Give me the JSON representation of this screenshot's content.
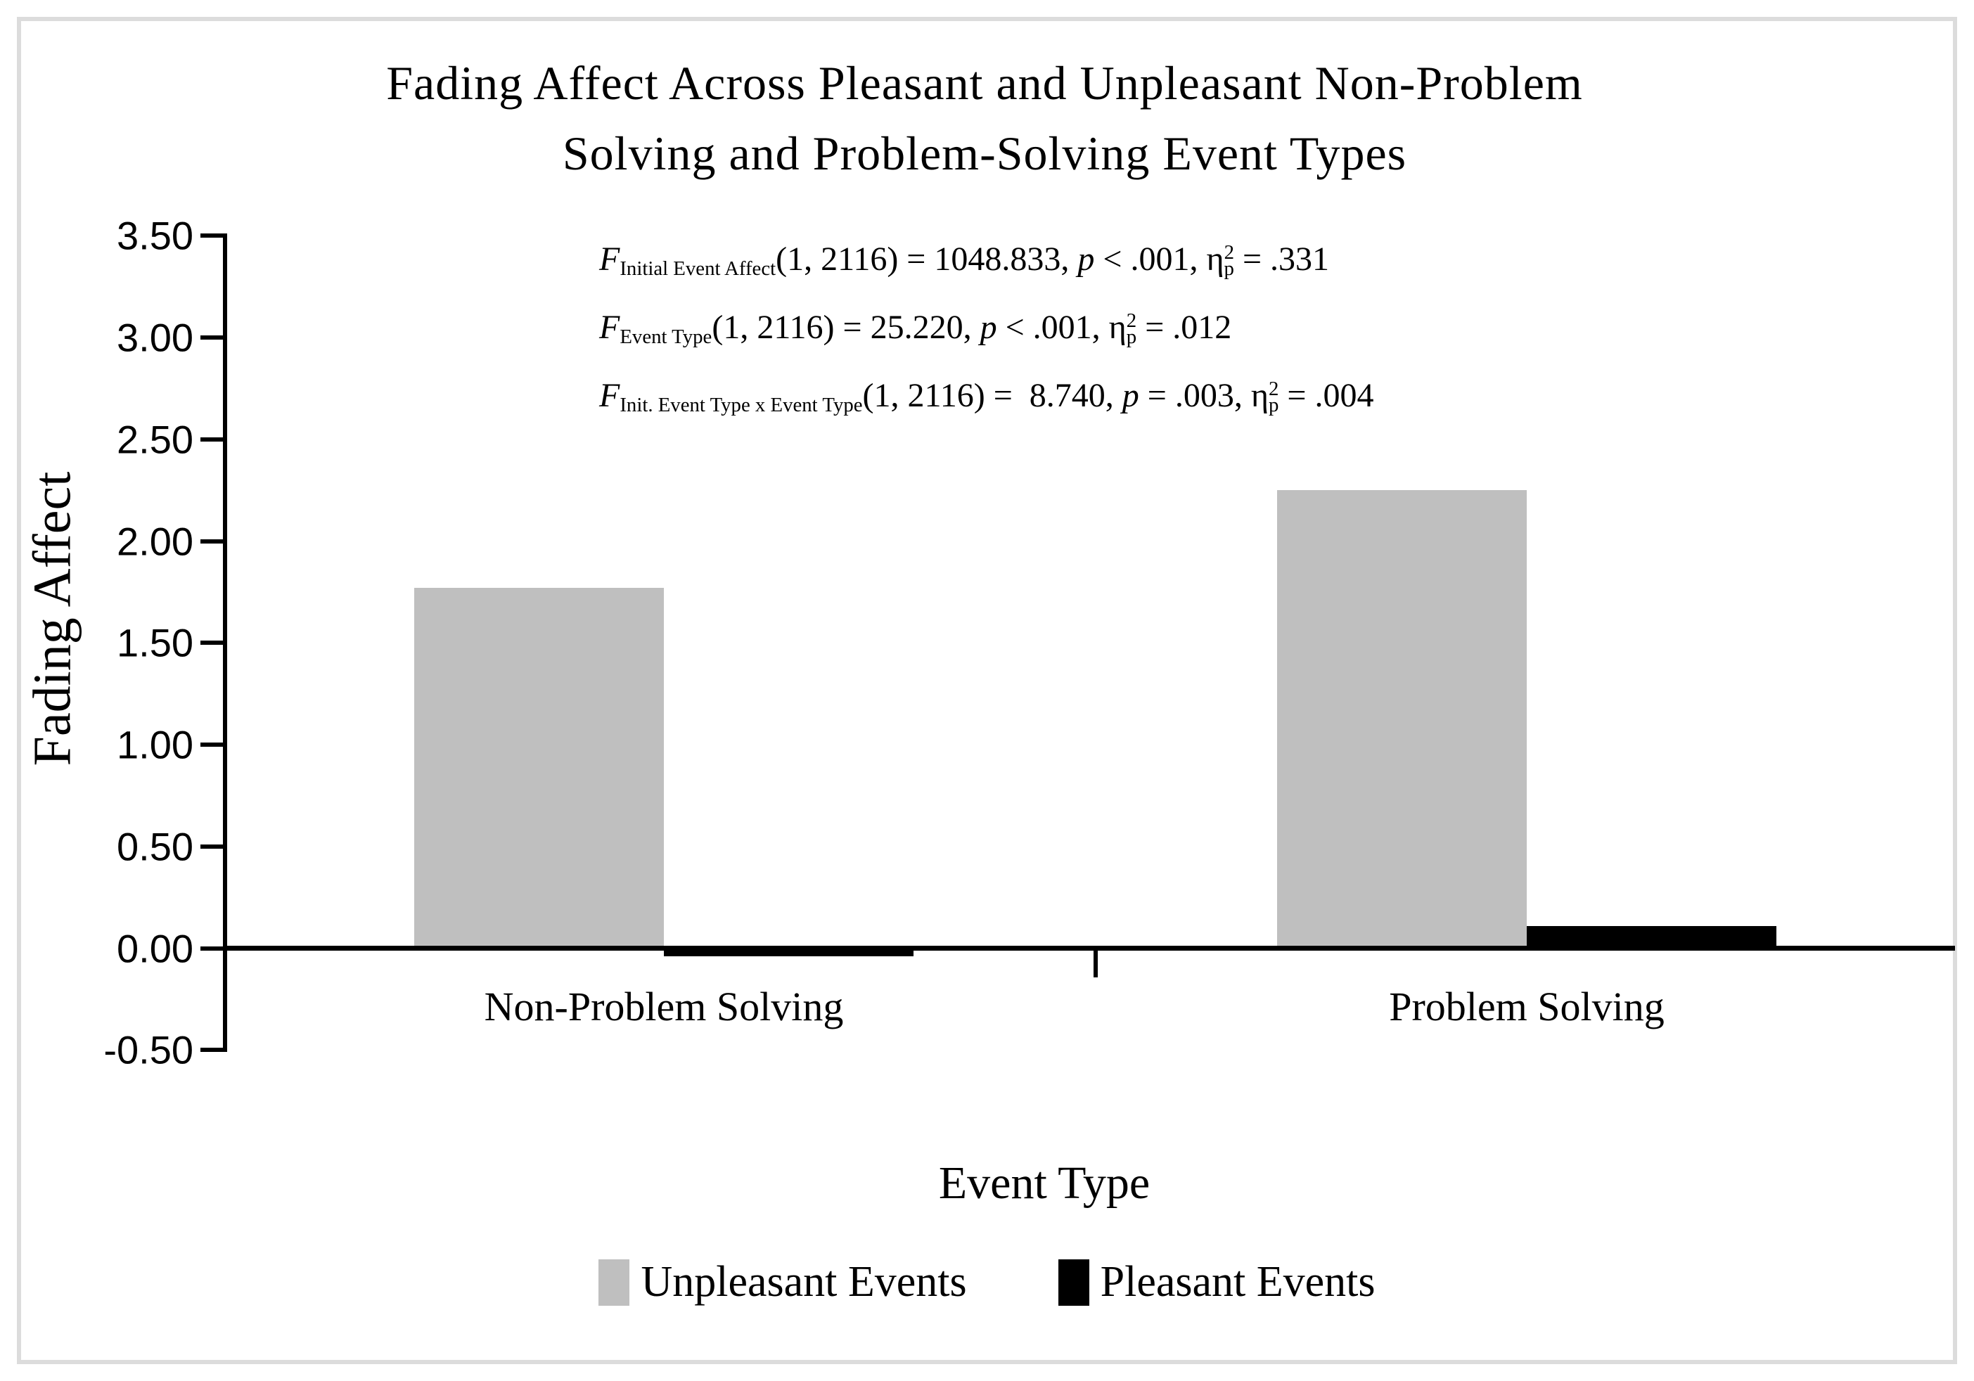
{
  "figure": {
    "background": "#FFFFFF",
    "border_color": "#DCDCDC",
    "title_lines": [
      "Fading Affect Across Pleasant and Unpleasant Non-Problem",
      "Solving and Problem-Solving Event Types"
    ]
  },
  "chart_data": {
    "type": "bar",
    "title": "Fading Affect Across Pleasant and Unpleasant Non-Problem Solving and Problem-Solving Event Types",
    "xlabel": "Event Type",
    "ylabel": "Fading Affect",
    "categories": [
      "Non-Problem Solving",
      "Problem Solving"
    ],
    "series": [
      {
        "name": "Unpleasant Events",
        "color": "#BFBFBF",
        "values": [
          1.77,
          2.25
        ]
      },
      {
        "name": "Pleasant Events",
        "color": "#000000",
        "values": [
          -0.04,
          0.11
        ]
      }
    ],
    "ylim": [
      -0.5,
      3.5
    ],
    "y_tick_step": 0.5,
    "y_ticks": [
      "3.50",
      "3.00",
      "2.50",
      "2.00",
      "1.50",
      "1.00",
      "0.50",
      "0.00",
      "-0.50"
    ],
    "grid": false,
    "legend_position": "bottom",
    "stats_annotation_plain": [
      "F Initial Event Affect(1, 2116) = 1048.833, p < .001, ηp² = .331",
      "F Event Type(1, 2116) = 25.220, p < .001, ηp² = .012",
      "F Init. Event Type x Event Type(1, 2116) =  8.740, p = .003, ηp² = .004"
    ]
  },
  "annotation": {
    "lines": [
      [
        {
          "t": "F",
          "s": "i"
        },
        {
          "t": "Initial Event Affect",
          "s": "sub"
        },
        {
          "t": "(1, 2116) = 1048.833, ",
          "s": "n"
        },
        {
          "t": "p",
          "s": "i"
        },
        {
          "t": " < .001, η",
          "s": "n"
        },
        {
          "t": "p",
          "s": "sub"
        },
        {
          "t": "2",
          "s": "sup"
        },
        {
          "t": " = .331",
          "s": "n"
        }
      ],
      [
        {
          "t": "F",
          "s": "i"
        },
        {
          "t": "Event Type",
          "s": "sub"
        },
        {
          "t": "(1, 2116) = 25.220, ",
          "s": "n"
        },
        {
          "t": "p",
          "s": "i"
        },
        {
          "t": " < .001, η",
          "s": "n"
        },
        {
          "t": "p",
          "s": "sub"
        },
        {
          "t": "2",
          "s": "sup"
        },
        {
          "t": " = .012",
          "s": "n"
        }
      ],
      [
        {
          "t": "F",
          "s": "i"
        },
        {
          "t": "Init. Event Type x Event Type",
          "s": "sub"
        },
        {
          "t": "(1, 2116) =  8.740, ",
          "s": "n"
        },
        {
          "t": "p",
          "s": "i"
        },
        {
          "t": " = .003, η",
          "s": "n"
        },
        {
          "t": "p",
          "s": "sub"
        },
        {
          "t": "2",
          "s": "sup"
        },
        {
          "t": " = .004",
          "s": "n"
        }
      ]
    ]
  },
  "legend": {
    "items": [
      {
        "label": "Unpleasant Events",
        "color": "#BFBFBF"
      },
      {
        "label": "Pleasant Events",
        "color": "#000000"
      }
    ]
  }
}
